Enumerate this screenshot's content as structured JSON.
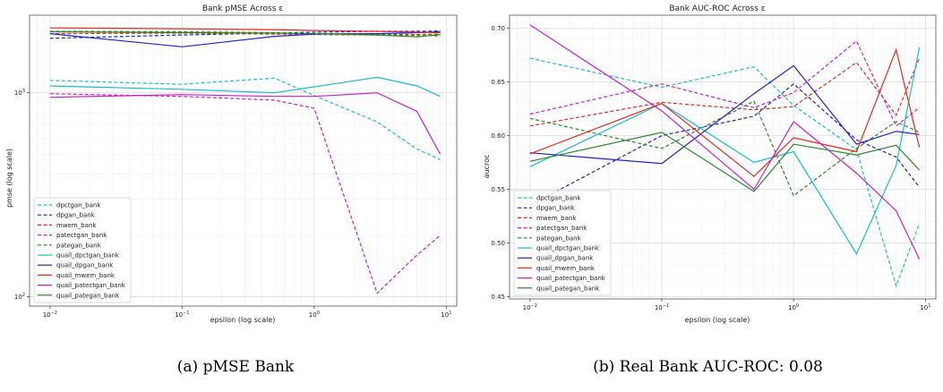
{
  "captions": {
    "a": "(a) pMSE Bank",
    "b": "(b) Real Bank AUC-ROC: 0.08"
  },
  "series_styles": [
    {
      "name": "dpctgan_bank",
      "color": "#17becf",
      "dashed": true
    },
    {
      "name": "dpgan_bank",
      "color": "#1f1fd6",
      "dashed": true
    },
    {
      "name": "mwem_bank",
      "color": "#e8291c",
      "dashed": true
    },
    {
      "name": "patectgan_bank",
      "color": "#c91fc9",
      "dashed": true
    },
    {
      "name": "pategan_bank",
      "color": "#2a8a2a",
      "dashed": true
    },
    {
      "name": "quail_dpctgan_bank",
      "color": "#17becf",
      "dashed": false
    },
    {
      "name": "quail_dpgan_bank",
      "color": "#1f1fd6",
      "dashed": false
    },
    {
      "name": "quail_mwem_bank",
      "color": "#e8291c",
      "dashed": false
    },
    {
      "name": "quail_patectgan_bank",
      "color": "#c91fc9",
      "dashed": false
    },
    {
      "name": "quail_pategan_bank",
      "color": "#2a8a2a",
      "dashed": false
    }
  ],
  "chart_data": [
    {
      "type": "line",
      "title": "Bank pMSE Across ε",
      "xlabel": "epsilon (log scale)",
      "ylabel": "pmse (log scale)",
      "x_scale": "log",
      "y_scale": "log",
      "xlim": [
        0.007,
        12
      ],
      "ylim": [
        90,
        2400
      ],
      "x_ticks": [
        {
          "value": 0.01,
          "base": "10",
          "exp": "−2"
        },
        {
          "value": 0.1,
          "base": "10",
          "exp": "−1"
        },
        {
          "value": 1,
          "base": "10",
          "exp": "0"
        },
        {
          "value": 10,
          "base": "10",
          "exp": "1"
        }
      ],
      "y_ticks": [
        {
          "value": 100,
          "base": "10",
          "exp": "2"
        },
        {
          "value": 1000,
          "base": "10",
          "exp": "3"
        }
      ],
      "grid": true,
      "legend_position": "bottom-left",
      "x": [
        0.01,
        0.1,
        0.5,
        1,
        3,
        6,
        9
      ],
      "series": [
        {
          "name": "dpctgan_bank",
          "values": [
            1150,
            1100,
            1180,
            970,
            720,
            530,
            470
          ]
        },
        {
          "name": "dpgan_bank",
          "values": [
            1850,
            1920,
            1960,
            1980,
            2000,
            2000,
            2010
          ]
        },
        {
          "name": "mwem_bank",
          "values": [
            1950,
            1960,
            1940,
            1930,
            1920,
            1910,
            1900
          ]
        },
        {
          "name": "patectgan_bank",
          "values": [
            990,
            960,
            920,
            840,
            104,
            160,
            200
          ]
        },
        {
          "name": "pategan_bank",
          "values": [
            2000,
            1990,
            1970,
            1950,
            1940,
            1930,
            1940
          ]
        },
        {
          "name": "quail_dpctgan_bank",
          "values": [
            1080,
            1040,
            1000,
            1070,
            1190,
            1080,
            960
          ]
        },
        {
          "name": "quail_dpgan_bank",
          "values": [
            1950,
            1680,
            1890,
            1940,
            1950,
            1970,
            1990
          ]
        },
        {
          "name": "quail_mwem_bank",
          "values": [
            2080,
            2060,
            2040,
            2020,
            2000,
            1980,
            1970
          ]
        },
        {
          "name": "quail_patectgan_bank",
          "values": [
            950,
            980,
            960,
            960,
            1000,
            810,
            500
          ]
        },
        {
          "name": "quail_pategan_bank",
          "values": [
            1990,
            1970,
            1960,
            1950,
            1920,
            1880,
            1930
          ]
        }
      ]
    },
    {
      "type": "line",
      "title": "Bank AUC-ROC Across ε",
      "xlabel": "epsilon (log scale)",
      "ylabel": "aucroc",
      "x_scale": "log",
      "y_scale": "linear",
      "xlim": [
        0.007,
        12
      ],
      "ylim": [
        0.448,
        0.712
      ],
      "x_ticks": [
        {
          "value": 0.01,
          "base": "10",
          "exp": "−2"
        },
        {
          "value": 0.1,
          "base": "10",
          "exp": "−1"
        },
        {
          "value": 1,
          "base": "10",
          "exp": "0"
        },
        {
          "value": 10,
          "base": "10",
          "exp": "1"
        }
      ],
      "y_ticks": [
        {
          "value": 0.45,
          "label": "0.45"
        },
        {
          "value": 0.5,
          "label": "0.50"
        },
        {
          "value": 0.55,
          "label": "0.55"
        },
        {
          "value": 0.6,
          "label": "0.60"
        },
        {
          "value": 0.65,
          "label": "0.65"
        },
        {
          "value": 0.7,
          "label": "0.70"
        }
      ],
      "grid": true,
      "legend_position": "bottom-left",
      "x": [
        0.01,
        0.1,
        0.5,
        1,
        3,
        6,
        9
      ],
      "series": [
        {
          "name": "dpctgan_bank",
          "values": [
            0.672,
            0.645,
            0.664,
            0.628,
            0.587,
            0.46,
            0.518
          ]
        },
        {
          "name": "dpgan_bank",
          "values": [
            0.535,
            0.6,
            0.618,
            0.648,
            0.596,
            0.58,
            0.552
          ]
        },
        {
          "name": "mwem_bank",
          "values": [
            0.609,
            0.631,
            0.624,
            0.627,
            0.668,
            0.619,
            0.672
          ]
        },
        {
          "name": "patectgan_bank",
          "values": [
            0.62,
            0.648,
            0.626,
            0.64,
            0.688,
            0.609,
            0.626
          ]
        },
        {
          "name": "pategan_bank",
          "values": [
            0.616,
            0.588,
            0.632,
            0.544,
            0.588,
            0.613,
            0.603
          ]
        },
        {
          "name": "quail_dpctgan_bank",
          "values": [
            0.571,
            0.63,
            0.575,
            0.585,
            0.49,
            0.572,
            0.682
          ]
        },
        {
          "name": "quail_dpgan_bank",
          "values": [
            0.584,
            0.574,
            0.639,
            0.665,
            0.592,
            0.604,
            0.601
          ]
        },
        {
          "name": "quail_mwem_bank",
          "values": [
            0.583,
            0.63,
            0.562,
            0.598,
            0.585,
            0.68,
            0.589
          ]
        },
        {
          "name": "quail_patectgan_bank",
          "values": [
            0.703,
            0.623,
            0.55,
            0.613,
            0.565,
            0.53,
            0.485
          ]
        },
        {
          "name": "quail_pategan_bank",
          "values": [
            0.576,
            0.603,
            0.548,
            0.592,
            0.582,
            0.591,
            0.568
          ]
        }
      ]
    }
  ]
}
